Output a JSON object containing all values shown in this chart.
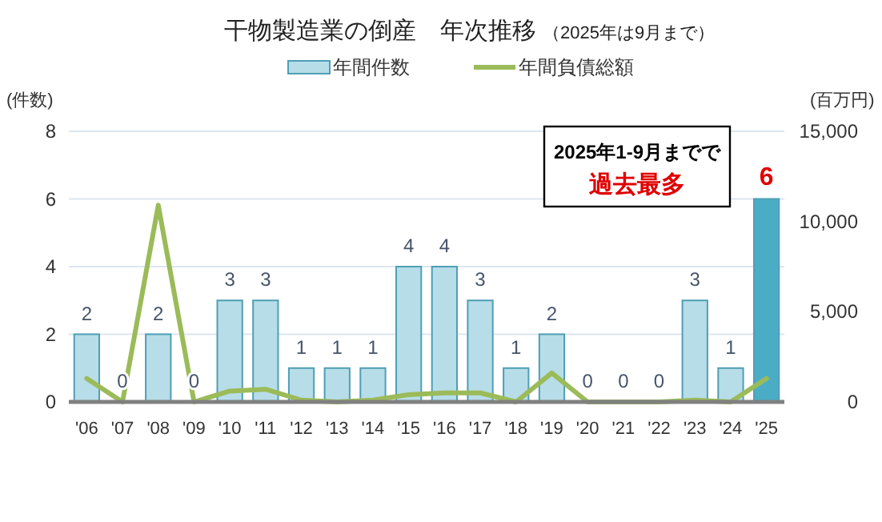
{
  "chart_data": {
    "type": "bar",
    "title": "干物製造業の倒産　年次推移",
    "subtitle": "（2025年は9月まで）",
    "ylabel": "(件数)",
    "y2label": "(百万円)",
    "categories": [
      "'06",
      "'07",
      "'08",
      "'09",
      "'10",
      "'11",
      "'12",
      "'13",
      "'14",
      "'15",
      "'16",
      "'17",
      "'18",
      "'19",
      "'20",
      "'21",
      "'22",
      "'23",
      "'24",
      "'25"
    ],
    "series": [
      {
        "name": "年間件数",
        "color": "#b7dde8",
        "colors": [
          "#b7dde8",
          "#b7dde8",
          "#b7dde8",
          "#b7dde8",
          "#b7dde8",
          "#b7dde8",
          "#b7dde8",
          "#b7dde8",
          "#b7dde8",
          "#b7dde8",
          "#b7dde8",
          "#b7dde8",
          "#b7dde8",
          "#b7dde8",
          "#b7dde8",
          "#b7dde8",
          "#b7dde8",
          "#b7dde8",
          "#b7dde8",
          "#4bacc6"
        ],
        "values": [
          2,
          0,
          2,
          0,
          3,
          3,
          1,
          1,
          1,
          4,
          4,
          3,
          1,
          2,
          0,
          0,
          0,
          3,
          1,
          6
        ],
        "value_labels": [
          "2",
          "0",
          "2",
          "0",
          "3",
          "3",
          "1",
          "1",
          "1",
          "4",
          "4",
          "3",
          "1",
          "2",
          "0",
          "0",
          "0",
          "3",
          "1",
          "6"
        ]
      },
      {
        "name": "年間負債総額",
        "type": "line",
        "axis": "y2",
        "color": "#9bbb59",
        "values": [
          1300,
          0,
          10900,
          0,
          600,
          700,
          100,
          0,
          100,
          400,
          500,
          500,
          0,
          1600,
          0,
          0,
          0,
          100,
          0,
          1300
        ]
      }
    ],
    "ylim": [
      0,
      8
    ],
    "yticks": [
      0,
      2,
      4,
      6,
      8
    ],
    "y2lim": [
      0,
      15000
    ],
    "y2ticks": [
      {
        "value": 0,
        "label": "0"
      },
      {
        "value": 5000,
        "label": "5,000"
      },
      {
        "value": 10000,
        "label": "10,000"
      },
      {
        "value": 15000,
        "label": "15,000"
      }
    ],
    "grid": "y",
    "legend": "top",
    "marker": "none",
    "line_style": "solid",
    "annotations": [
      "2025年1-9月までで",
      "過去最多"
    ]
  }
}
